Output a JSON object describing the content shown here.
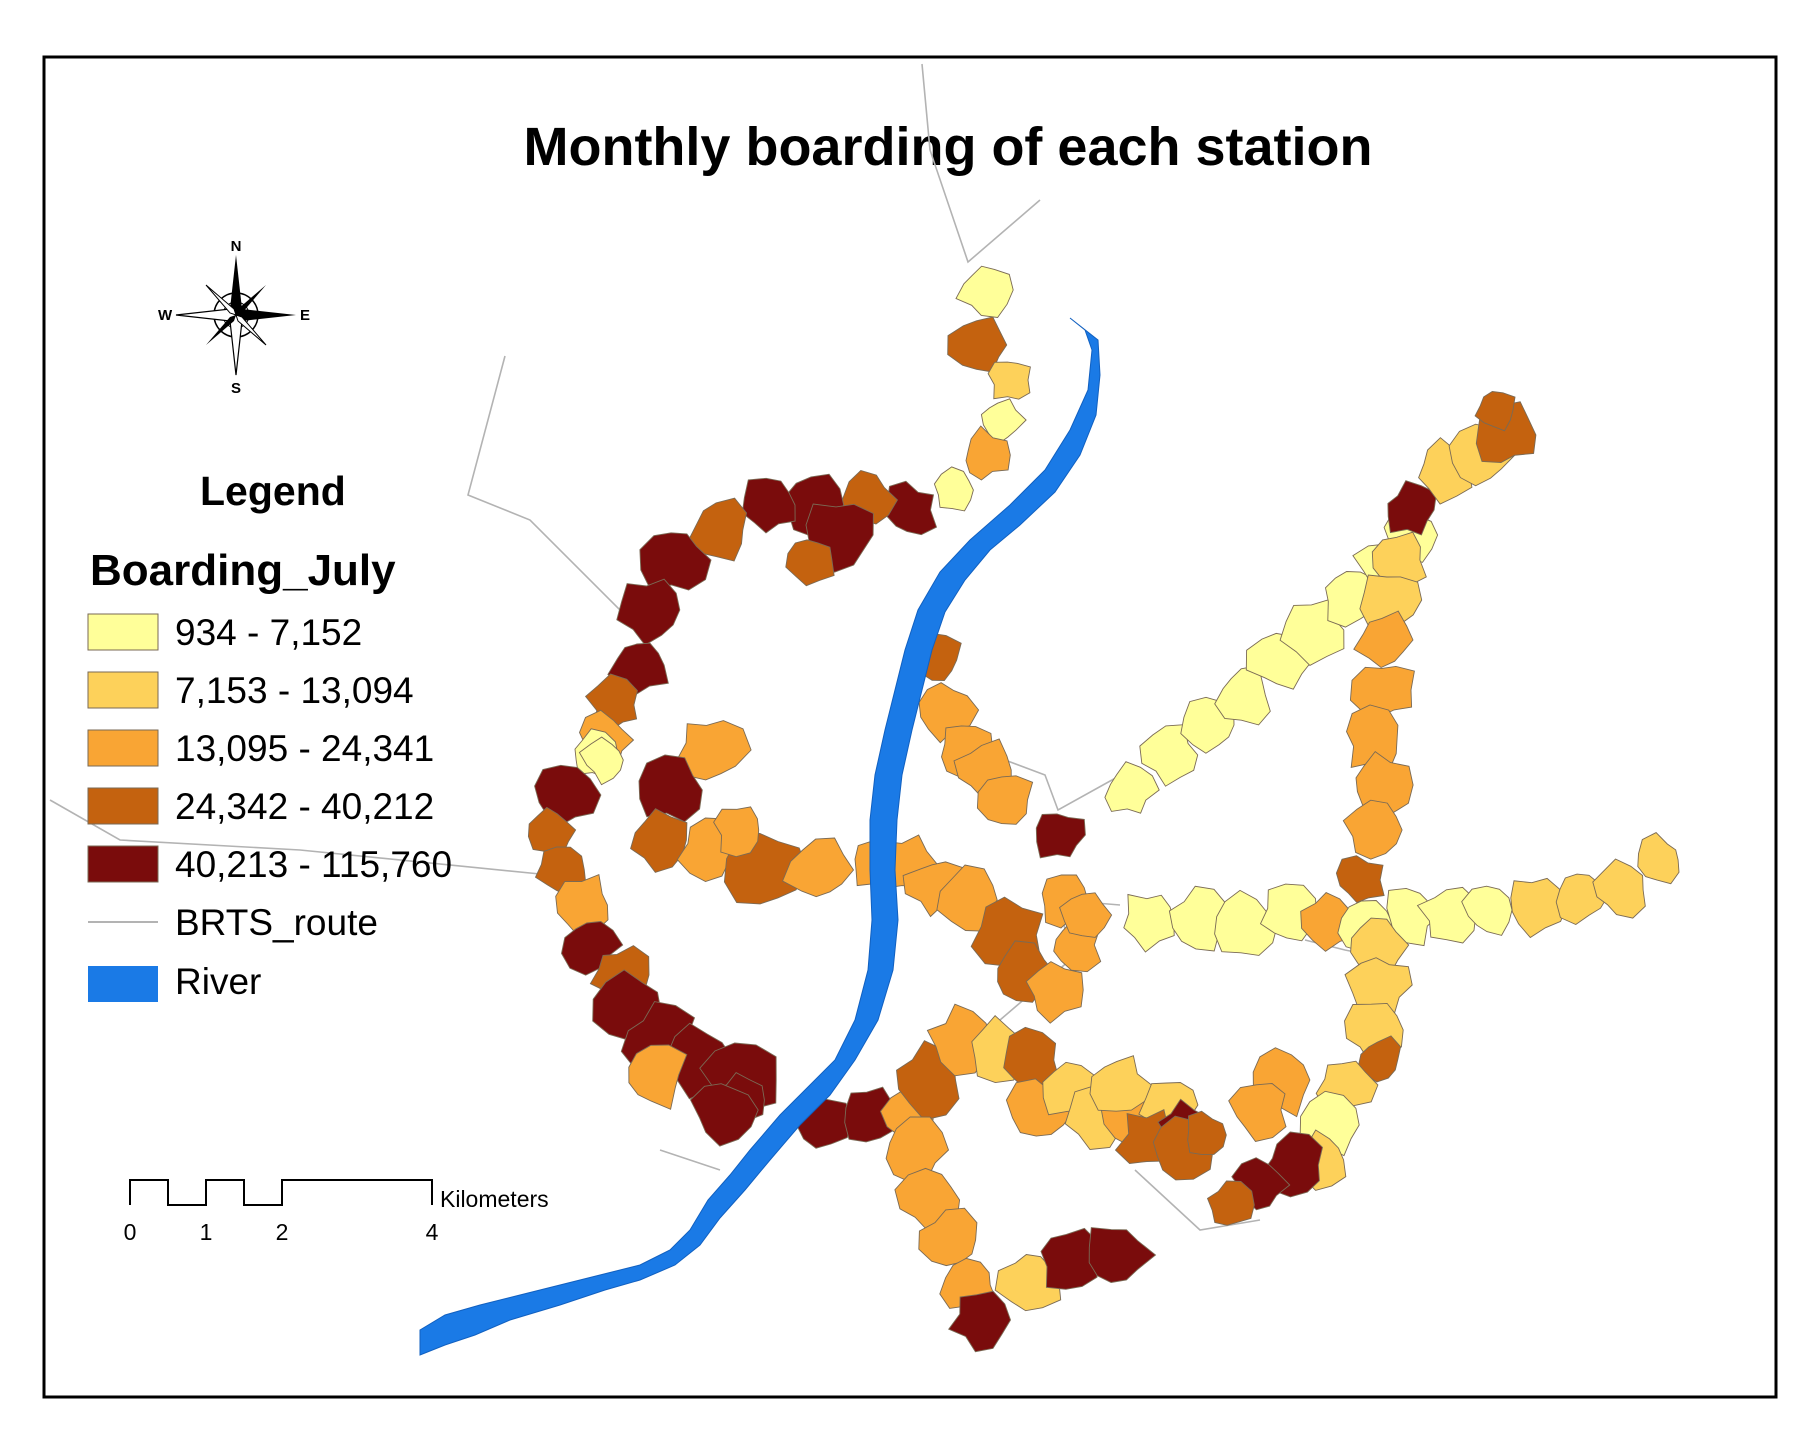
{
  "map": {
    "title": "Monthly boarding of each station",
    "legend": {
      "heading": "Legend",
      "field": "Boarding_July",
      "classes": [
        {
          "label": "934 - 7,152",
          "color": "#ffff99"
        },
        {
          "label": "7,153 - 13,094",
          "color": "#fdd15a"
        },
        {
          "label": "13,095 - 24,341",
          "color": "#f9a534"
        },
        {
          "label": "24,342 - 40,212",
          "color": "#c4620f"
        },
        {
          "label": "40,213 - 115,760",
          "color": "#7a0c0c"
        }
      ],
      "route": {
        "label": "BRTS_route",
        "color": "#b3b3b3"
      },
      "river": {
        "label": "River",
        "color": "#1a7ae6"
      }
    },
    "north_arrow": {
      "n": "N",
      "s": "S",
      "e": "E",
      "w": "W"
    },
    "scale_bar": {
      "unit": "Kilometers",
      "ticks": [
        "0",
        "1",
        "2",
        "4"
      ]
    }
  }
}
